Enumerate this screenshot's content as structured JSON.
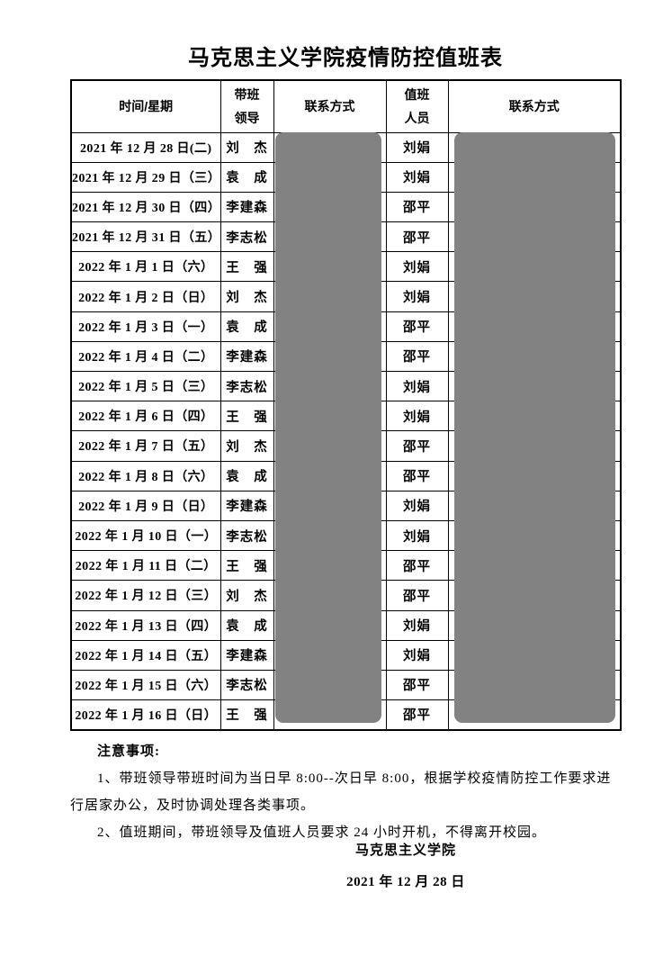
{
  "page": {
    "title": "马克思主义学院疫情防控值班表"
  },
  "table": {
    "headers": [
      "时间/星期",
      "带班\n领导",
      "联系方式",
      "值班\n人员",
      "联系方式"
    ],
    "redaction_color": "#828282",
    "rows": [
      {
        "date": "2021 年 12 月 28 日(二)",
        "leader": "刘　杰",
        "duty": "刘娟"
      },
      {
        "date": "2021 年 12 月 29 日（三）",
        "leader": "袁　成",
        "duty": "刘娟"
      },
      {
        "date": "2021 年 12 月 30 日（四）",
        "leader": "李建森",
        "duty": "邵平"
      },
      {
        "date": "2021 年 12 月 31 日（五）",
        "leader": "李志松",
        "duty": "邵平"
      },
      {
        "date": "2022 年 1 月 1 日（六）",
        "leader": "王　强",
        "duty": "刘娟"
      },
      {
        "date": "2022 年 1 月 2 日（日）",
        "leader": "刘　杰",
        "duty": "刘娟"
      },
      {
        "date": "2022 年 1 月 3 日（一）",
        "leader": "袁　成",
        "duty": "邵平"
      },
      {
        "date": "2022 年 1 月 4 日（二）",
        "leader": "李建森",
        "duty": "邵平"
      },
      {
        "date": "2022 年 1 月 5 日（三）",
        "leader": "李志松",
        "duty": "刘娟"
      },
      {
        "date": "2022 年 1 月 6 日（四）",
        "leader": "王　强",
        "duty": "刘娟"
      },
      {
        "date": "2022 年 1 月 7 日（五）",
        "leader": "刘　杰",
        "duty": "邵平"
      },
      {
        "date": "2022 年 1 月 8 日（六）",
        "leader": "袁　成",
        "duty": "邵平"
      },
      {
        "date": "2022 年 1 月 9 日（日）",
        "leader": "李建森",
        "duty": "刘娟"
      },
      {
        "date": "2022 年 1 月 10 日（一）",
        "leader": "李志松",
        "duty": "刘娟"
      },
      {
        "date": "2022 年 1 月 11 日（二）",
        "leader": "王　强",
        "duty": "邵平"
      },
      {
        "date": "2022 年 1 月 12 日（三）",
        "leader": "刘　杰",
        "duty": "邵平"
      },
      {
        "date": "2022 年 1 月 13 日（四）",
        "leader": "袁　成",
        "duty": "刘娟"
      },
      {
        "date": "2022 年 1 月 14 日（五）",
        "leader": "李建森",
        "duty": "刘娟"
      },
      {
        "date": "2022 年 1 月 15 日（六）",
        "leader": "李志松",
        "duty": "邵平"
      },
      {
        "date": "2022 年 1 月 16 日（日）",
        "leader": "王　强",
        "duty": "邵平"
      }
    ]
  },
  "notes": {
    "heading": "注意事项:",
    "items": [
      "1、带班领导带班时间为当日早 8:00--次日早 8:00，根据学校疫情防控工作要求进行居家办公，及时协调处理各类事项。",
      "2、值班期间，带班领导及值班人员要求 24 小时开机，不得离开校园。"
    ]
  },
  "signature": {
    "org": "马克思主义学院",
    "date": "2021 年 12 月 28 日"
  }
}
